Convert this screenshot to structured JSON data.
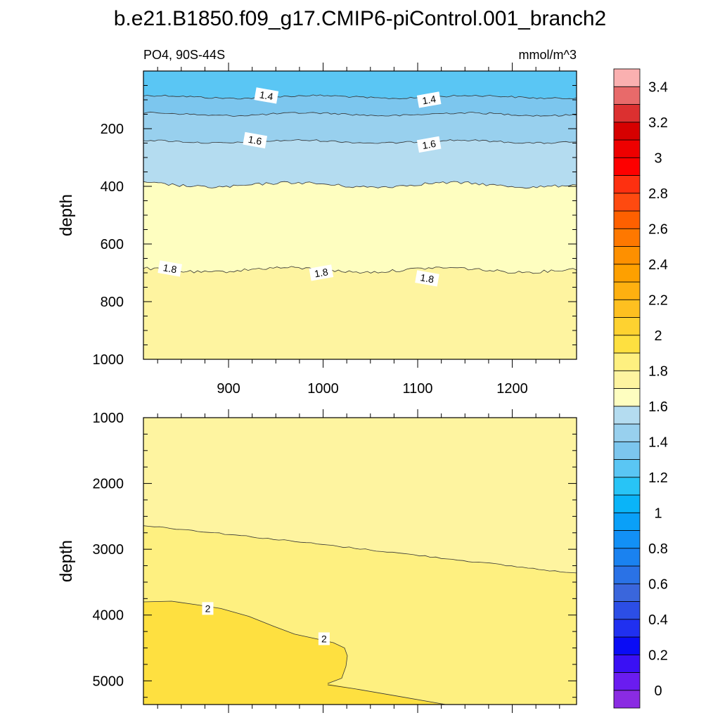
{
  "chart_data": {
    "type": "heatmap",
    "title": "b.e21.B1850.f09_g17.CMIP6-piControl.001_branch2",
    "variable": "PO4, 90S-44S",
    "units": "mmol/m^3",
    "ylabel": "depth",
    "xlim": [
      810,
      1268
    ],
    "x_ticks": [
      900,
      1000,
      1100,
      1200
    ],
    "colorbar": {
      "levels": [
        0,
        0.1,
        0.2,
        0.3,
        0.4,
        0.5,
        0.6,
        0.7,
        0.8,
        0.9,
        1,
        1.1,
        1.2,
        1.3,
        1.4,
        1.5,
        1.6,
        1.7,
        1.8,
        1.9,
        2,
        2.1,
        2.2,
        2.3,
        2.4,
        2.5,
        2.6,
        2.7,
        2.8,
        2.9,
        3,
        3.1,
        3.2,
        3.3,
        3.4,
        3.5
      ],
      "labels": [
        "0",
        "0.2",
        "0.4",
        "0.6",
        "0.8",
        "1",
        "1.2",
        "1.4",
        "1.6",
        "1.8",
        "2",
        "2.2",
        "2.4",
        "2.6",
        "2.8",
        "3",
        "3.2",
        "3.4"
      ],
      "colors": [
        "#8a2be2",
        "#6a1cf0",
        "#3a10f4",
        "#0a0cf5",
        "#2030f0",
        "#2c4ee6",
        "#3a66dc",
        "#2a72e6",
        "#1a82f0",
        "#1290f6",
        "#0aa0f8",
        "#0ab4f8",
        "#28c4f6",
        "#5ac6f4",
        "#7cc6ee",
        "#98d0ee",
        "#b4dcf0",
        "#fefec0",
        "#fef4a0",
        "#fef080",
        "#fee040",
        "#fed230",
        "#fec020",
        "#feb010",
        "#fea000",
        "#fe9000",
        "#fe7800",
        "#fe6000",
        "#fe4a10",
        "#fe3010",
        "#fe0000",
        "#ee0000",
        "#d60000",
        "#dc3030",
        "#e86a6a",
        "#fab0b0"
      ]
    },
    "panels": [
      {
        "name": "upper",
        "ylim": [
          1000,
          0
        ],
        "y_ticks": [
          200,
          400,
          600,
          800,
          1000
        ],
        "x_tick_labels": [
          "900",
          "1000",
          "1100",
          "1200"
        ],
        "contours": [
          {
            "level": 1.4,
            "depth": 90,
            "fill_above": "#5ac6f4",
            "labels": [
              {
                "x": 940,
                "text": "1.4"
              },
              {
                "x": 1112,
                "text": "1.4"
              }
            ]
          },
          {
            "level": 1.5,
            "depth": 150,
            "fill_above": "#7cc6ee",
            "labels": []
          },
          {
            "level": 1.6,
            "depth": 245,
            "fill_above": "#98d0ee",
            "labels": [
              {
                "x": 928,
                "text": "1.6"
              },
              {
                "x": 1112,
                "text": "1.6"
              }
            ]
          },
          {
            "level": 1.7,
            "depth": 395,
            "fill_above": "#b4dcf0",
            "labels": []
          },
          {
            "level": 1.8,
            "depth": 690,
            "fill_above": "#fefec0",
            "fill_below": "#fef4a0",
            "labels": [
              {
                "x": 838,
                "text": "1.8"
              },
              {
                "x": 998,
                "text": "1.8"
              },
              {
                "x": 1110,
                "text": "1.8"
              }
            ]
          }
        ]
      },
      {
        "name": "lower",
        "ylim": [
          1000,
          5360
        ],
        "y_ticks": [
          1000,
          2000,
          3000,
          4000,
          5000
        ],
        "x_tick_labels": [],
        "regions": [
          {
            "value_range": "1.8-1.9",
            "color": "#fef4a0"
          },
          {
            "value_range": "1.9-2.0",
            "color": "#fef080"
          },
          {
            "value_range": "2.0-2.1",
            "color": "#fee040"
          }
        ],
        "contours": [
          {
            "level": 1.9,
            "start_depth": 2640,
            "end_depth": 3370,
            "labels": []
          },
          {
            "level": 2.0,
            "start_depth": 3800,
            "labels": [
              {
                "x": 878,
                "text": "2"
              },
              {
                "x": 1001,
                "text": "2"
              }
            ]
          }
        ]
      }
    ]
  }
}
